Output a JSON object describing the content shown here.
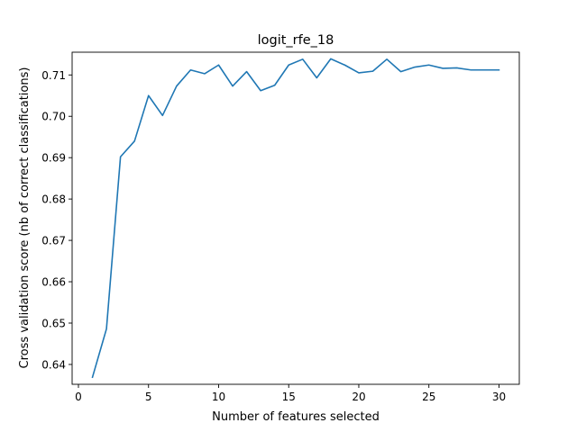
{
  "chart_data": {
    "type": "line",
    "title": "logit_rfe_18",
    "xlabel": "Number of features selected",
    "ylabel": "Cross validation score (nb of correct classifications)",
    "xlim": [
      -0.45,
      31.45
    ],
    "ylim": [
      0.6352,
      0.7155
    ],
    "xticks": [
      0,
      5,
      10,
      15,
      20,
      25,
      30
    ],
    "xtick_labels": [
      "0",
      "5",
      "10",
      "15",
      "20",
      "25",
      "30"
    ],
    "yticks": [
      0.64,
      0.65,
      0.66,
      0.67,
      0.68,
      0.69,
      0.7,
      0.71
    ],
    "ytick_labels": [
      "0.64",
      "0.65",
      "0.66",
      "0.67",
      "0.68",
      "0.69",
      "0.70",
      "0.71"
    ],
    "grid": false,
    "series": [
      {
        "color": "#1f77b4",
        "x": [
          1,
          2,
          3,
          4,
          5,
          6,
          7,
          8,
          9,
          10,
          11,
          12,
          13,
          14,
          15,
          16,
          17,
          18,
          19,
          20,
          21,
          22,
          23,
          24,
          25,
          26,
          27,
          28,
          29,
          30
        ],
        "y": [
          0.6369,
          0.6486,
          0.6902,
          0.694,
          0.705,
          0.7002,
          0.7073,
          0.7112,
          0.7103,
          0.7124,
          0.7073,
          0.7108,
          0.7062,
          0.7075,
          0.7124,
          0.7138,
          0.7093,
          0.7139,
          0.7124,
          0.7105,
          0.7109,
          0.7138,
          0.7108,
          0.7119,
          0.7124,
          0.7116,
          0.7117,
          0.7112,
          0.7112,
          0.7112
        ]
      }
    ]
  }
}
